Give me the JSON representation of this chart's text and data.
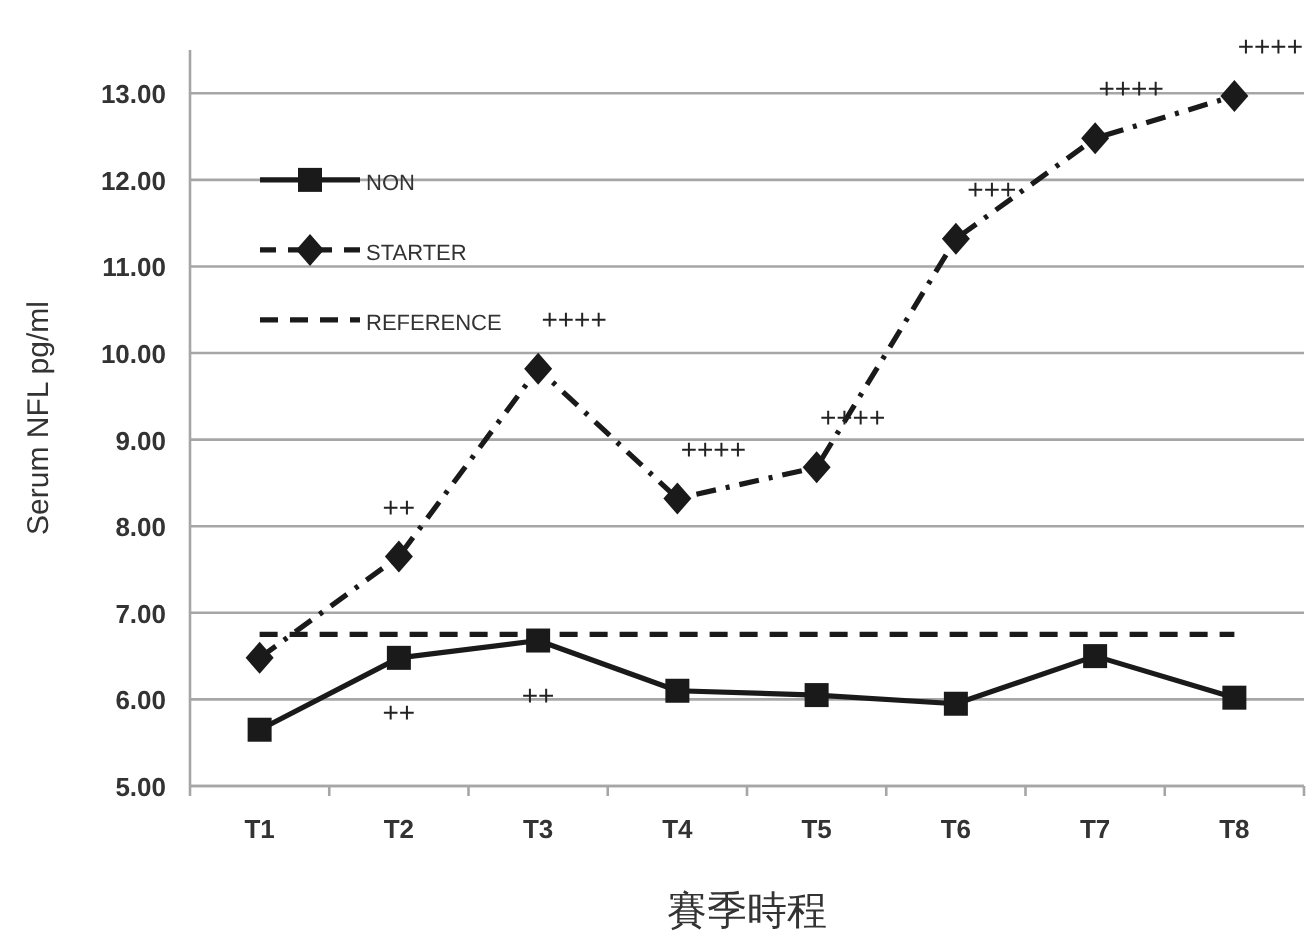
{
  "chart_data": {
    "type": "line",
    "xlabel": "賽季時程",
    "ylabel": "Serum NFL pg/ml",
    "categories": [
      "T1",
      "T2",
      "T3",
      "T4",
      "T5",
      "T6",
      "T7",
      "T8"
    ],
    "series": [
      {
        "name": "NON",
        "color": "#1a1a1a",
        "values": [
          5.65,
          6.48,
          6.68,
          6.1,
          6.05,
          5.95,
          6.5,
          6.02
        ],
        "marker": "square",
        "line_style": "solid"
      },
      {
        "name": "STARTER",
        "color": "#1a1a1a",
        "values": [
          6.48,
          7.65,
          9.82,
          8.32,
          8.68,
          11.32,
          12.48,
          12.97
        ],
        "marker": "diamond",
        "line_style": "dashdot"
      },
      {
        "name": "REFERENCE",
        "color": "#1a1a1a",
        "values": [
          6.75,
          6.75,
          6.75,
          6.75,
          6.75,
          6.75,
          6.75,
          6.75
        ],
        "marker": "none",
        "line_style": "dashed"
      }
    ],
    "annotations": [
      {
        "text": "++",
        "x": "T2",
        "y": 7.65
      },
      {
        "text": "++",
        "x": "T2",
        "y": 6.48
      },
      {
        "text": "++",
        "x": "T3",
        "y": 6.68
      },
      {
        "text": "++++",
        "x": "T3",
        "y": 9.82
      },
      {
        "text": "++++",
        "x": "T4",
        "y": 8.32
      },
      {
        "text": "++++",
        "x": "T5",
        "y": 8.68
      },
      {
        "text": "+++",
        "x": "T6",
        "y": 11.32
      },
      {
        "text": "++++",
        "x": "T7",
        "y": 12.48
      },
      {
        "text": "++++",
        "x": "T8",
        "y": 12.97
      }
    ],
    "ylim": [
      5,
      13.5
    ],
    "yticks": [
      {
        "value": 5,
        "label": "5.00"
      },
      {
        "value": 6,
        "label": "6.00"
      },
      {
        "value": 7,
        "label": "7.00"
      },
      {
        "value": 8,
        "label": "8.00"
      },
      {
        "value": 9,
        "label": "9.00"
      },
      {
        "value": 10,
        "label": "10.00"
      },
      {
        "value": 11,
        "label": "11.00"
      },
      {
        "value": 12,
        "label": "12.00"
      },
      {
        "value": 13,
        "label": "13.00"
      }
    ],
    "grid": "y",
    "legend": "top left"
  }
}
